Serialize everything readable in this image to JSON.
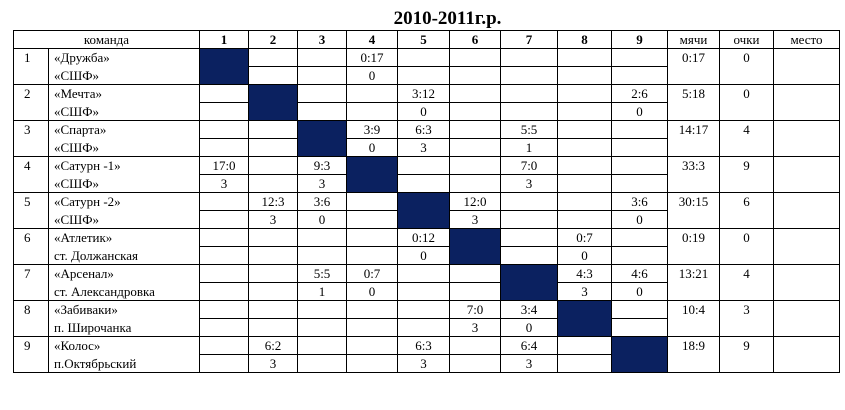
{
  "title": "2010-2011г.р.",
  "headers": {
    "team": "команда",
    "cols": [
      "1",
      "2",
      "3",
      "4",
      "5",
      "6",
      "7",
      "8",
      "9"
    ],
    "goals": "мячи",
    "points": "очки",
    "place": "место"
  },
  "rows": [
    {
      "idx": "1",
      "name1": "«Дружба»",
      "name2": "«СШФ»",
      "scores": [
        "",
        "",
        "",
        "0:17",
        "",
        "",
        "",
        "",
        ""
      ],
      "points_row": [
        "",
        "",
        "",
        "0",
        "",
        "",
        "",
        "",
        ""
      ],
      "goals": "0:17",
      "points": "0",
      "place": ""
    },
    {
      "idx": "2",
      "name1": "«Мечта»",
      "name2": "«СШФ»",
      "scores": [
        "",
        "",
        "",
        "",
        "3:12",
        "",
        "",
        "",
        "2:6"
      ],
      "points_row": [
        "",
        "",
        "",
        "",
        "0",
        "",
        "",
        "",
        "0"
      ],
      "goals": "5:18",
      "points": "0",
      "place": ""
    },
    {
      "idx": "3",
      "name1": "«Спарта»",
      "name2": "«СШФ»",
      "scores": [
        "",
        "",
        "",
        "3:9",
        "6:3",
        "",
        "5:5",
        "",
        ""
      ],
      "points_row": [
        "",
        "",
        "",
        "0",
        "3",
        "",
        "1",
        "",
        ""
      ],
      "goals": "14:17",
      "points": "4",
      "place": ""
    },
    {
      "idx": "4",
      "name1": "«Сатурн -1»",
      "name2": "«СШФ»",
      "scores": [
        "17:0",
        "",
        "9:3",
        "",
        "",
        "",
        "7:0",
        "",
        ""
      ],
      "points_row": [
        "3",
        "",
        "3",
        "",
        "",
        "",
        "3",
        "",
        ""
      ],
      "goals": "33:3",
      "points": "9",
      "place": ""
    },
    {
      "idx": "5",
      "name1": "«Сатурн -2»",
      "name2": "«СШФ»",
      "scores": [
        "",
        "12:3",
        "3:6",
        "",
        "",
        "12:0",
        "",
        "",
        "3:6"
      ],
      "points_row": [
        "",
        "3",
        "0",
        "",
        "",
        "3",
        "",
        "",
        "0"
      ],
      "goals": "30:15",
      "points": "6",
      "place": ""
    },
    {
      "idx": "6",
      "name1": "«Атлетик»",
      "name2": "ст. Должанская",
      "scores": [
        "",
        "",
        "",
        "",
        "0:12",
        "",
        "",
        "0:7",
        ""
      ],
      "points_row": [
        "",
        "",
        "",
        "",
        "0",
        "",
        "",
        "0",
        ""
      ],
      "goals": "0:19",
      "points": "0",
      "place": ""
    },
    {
      "idx": "7",
      "name1": "«Арсенал»",
      "name2": "ст. Александровка",
      "scores": [
        "",
        "",
        "5:5",
        "0:7",
        "",
        "",
        "",
        "4:3",
        "4:6"
      ],
      "points_row": [
        "",
        "",
        "1",
        "0",
        "",
        "",
        "",
        "3",
        "0"
      ],
      "goals": "13:21",
      "points": "4",
      "place": ""
    },
    {
      "idx": "8",
      "name1": "«Забиваки»",
      "name2": "п. Широчанка",
      "scores": [
        "",
        "",
        "",
        "",
        "",
        "7:0",
        "3:4",
        "",
        ""
      ],
      "points_row": [
        "",
        "",
        "",
        "",
        "",
        "3",
        "0",
        "",
        ""
      ],
      "goals": "10:4",
      "points": "3",
      "place": ""
    },
    {
      "idx": "9",
      "name1": "«Колос»",
      "name2": "п.Октябрьский",
      "scores": [
        "",
        "6:2",
        "",
        "",
        "6:3",
        "",
        "6:4",
        "",
        ""
      ],
      "points_row": [
        "",
        "3",
        "",
        "",
        "3",
        "",
        "3",
        "",
        ""
      ],
      "goals": "18:9",
      "points": "9",
      "place": ""
    }
  ],
  "colors": {
    "diagonal": "#0b2160",
    "border": "#000000"
  }
}
